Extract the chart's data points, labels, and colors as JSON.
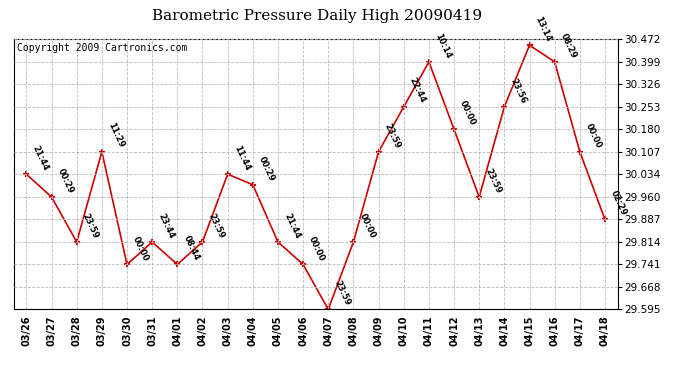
{
  "title": "Barometric Pressure Daily High 20090419",
  "copyright": "Copyright 2009 Cartronics.com",
  "x_labels": [
    "03/26",
    "03/27",
    "03/28",
    "03/29",
    "03/30",
    "03/31",
    "04/01",
    "04/02",
    "04/03",
    "04/04",
    "04/05",
    "04/06",
    "04/07",
    "04/08",
    "04/09",
    "04/10",
    "04/11",
    "04/12",
    "04/13",
    "04/14",
    "04/15",
    "04/16",
    "04/17",
    "04/18"
  ],
  "y_values": [
    30.034,
    29.96,
    29.814,
    30.107,
    29.741,
    29.814,
    29.741,
    29.814,
    30.034,
    30.0,
    29.814,
    29.741,
    29.595,
    29.814,
    30.107,
    30.253,
    30.399,
    30.18,
    29.96,
    30.253,
    30.453,
    30.399,
    30.107,
    29.887
  ],
  "point_labels": [
    "21:44",
    "00:29",
    "23:59",
    "11:29",
    "00:00",
    "23:44",
    "08:44",
    "23:59",
    "11:44",
    "00:29",
    "21:44",
    "00:00",
    "23:59",
    "00:00",
    "23:59",
    "22:44",
    "10:14",
    "00:00",
    "23:59",
    "23:56",
    "13:14",
    "08:29",
    "00:00",
    "02:29"
  ],
  "ylim_min": 29.595,
  "ylim_max": 30.472,
  "yticks": [
    29.595,
    29.668,
    29.741,
    29.814,
    29.887,
    29.96,
    30.034,
    30.107,
    30.18,
    30.253,
    30.326,
    30.399,
    30.472
  ],
  "line_color": "#cc0000",
  "marker_color": "#cc0000",
  "bg_color": "#ffffff",
  "grid_color": "#bbbbbb",
  "title_fontsize": 11,
  "copyright_fontsize": 7,
  "xlabel_fontsize": 7,
  "ylabel_fontsize": 7.5,
  "label_rotation": -65
}
